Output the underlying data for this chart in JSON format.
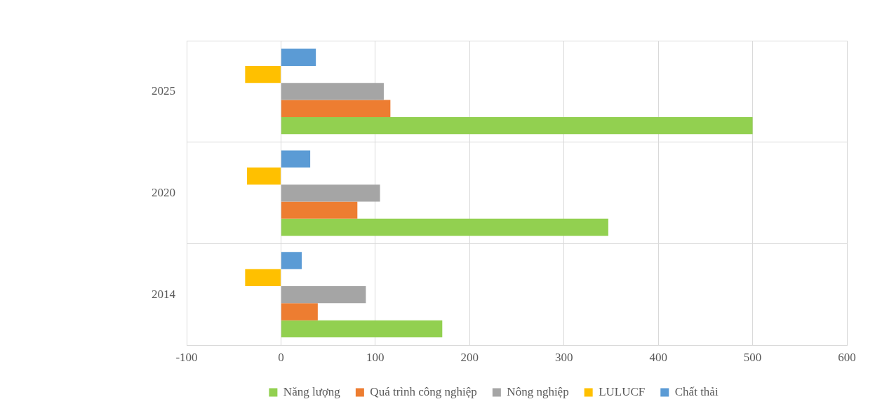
{
  "chart_data": {
    "type": "bar",
    "orientation": "horizontal",
    "categories": [
      "2025",
      "2020",
      "2014"
    ],
    "series": [
      {
        "name": "Năng lượng",
        "color": "#92d050",
        "values": [
          500,
          347,
          171
        ]
      },
      {
        "name": "Quá trình công nghiệp",
        "color": "#ed7d31",
        "values": [
          116,
          81,
          39
        ]
      },
      {
        "name": "Nông nghiệp",
        "color": "#a5a5a5",
        "values": [
          109,
          105,
          90
        ]
      },
      {
        "name": "LULUCF",
        "color": "#ffc000",
        "values": [
          -38,
          -36,
          -38
        ]
      },
      {
        "name": "Chất thải",
        "color": "#5b9bd5",
        "values": [
          37,
          31,
          22
        ]
      }
    ],
    "xlim": [
      -100,
      600
    ],
    "xticks": [
      -100,
      0,
      100,
      200,
      300,
      400,
      500,
      600
    ],
    "grid": true,
    "legend": "bottom"
  }
}
